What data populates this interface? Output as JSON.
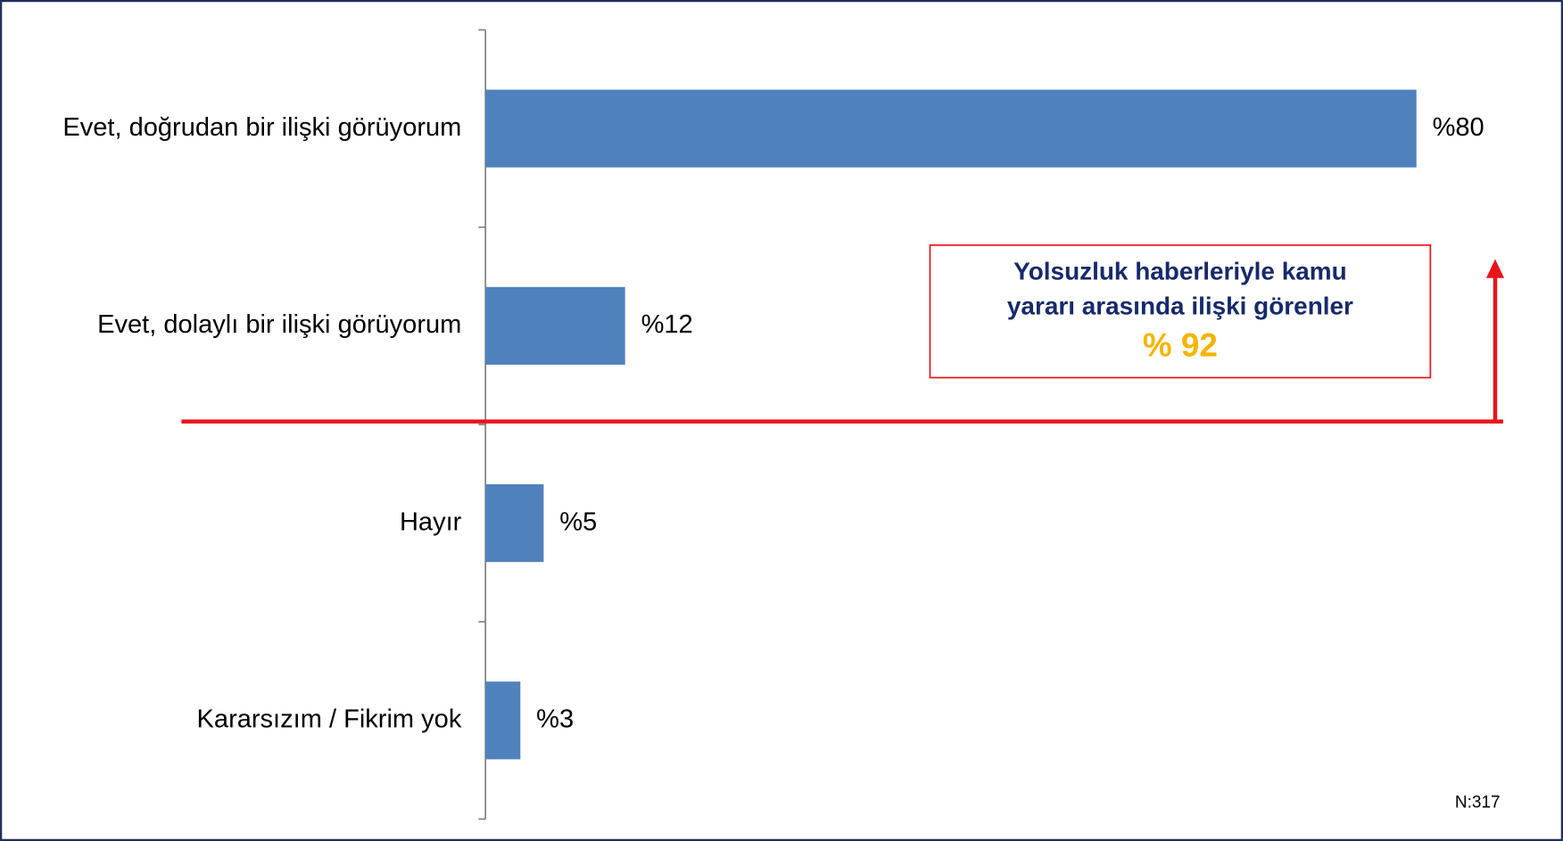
{
  "chart_data": {
    "type": "bar",
    "orientation": "horizontal",
    "categories": [
      "Evet, doğrudan bir ilişki görüyorum",
      "Evet, dolaylı bir ilişki görüyorum",
      "Hayır",
      "Kararsızım / Fikrim yok"
    ],
    "values": [
      80,
      12,
      5,
      3
    ],
    "value_labels": [
      "%80",
      "%12",
      "%5",
      "%3"
    ],
    "color": "#4f81bd",
    "annotation": {
      "lines": [
        "Yolsuzluk haberleriyle kamu",
        "yararı arasında ilişki görenler"
      ],
      "highlight": "% 92"
    },
    "note": "N:317"
  }
}
